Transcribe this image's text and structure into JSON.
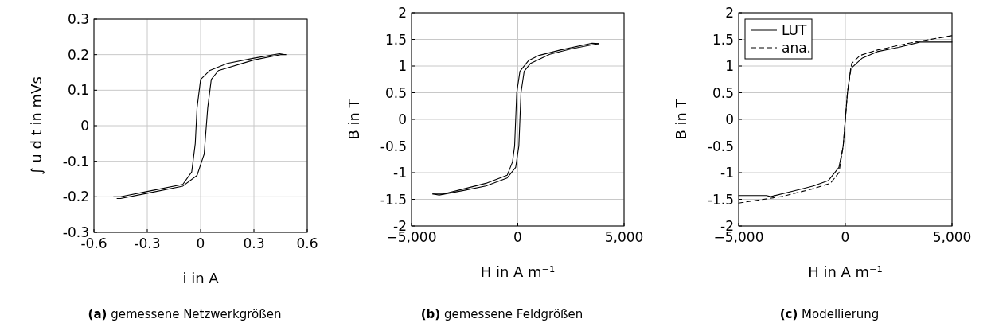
{
  "chart_data": [
    {
      "type": "line",
      "title": "(a) gemessene Netzwerkgrößen",
      "xlabel": "i in A",
      "ylabel": "∫ u d t in mVs",
      "xlim": [
        -0.6,
        0.6
      ],
      "xticks": [
        -0.6,
        -0.3,
        0,
        0.3,
        0.6
      ],
      "ylim": [
        -0.3,
        0.3
      ],
      "yticks": [
        -0.3,
        -0.2,
        -0.1,
        0,
        0.1,
        0.2,
        0.3
      ],
      "grid": true,
      "line_style": "solid",
      "series": [
        {
          "color": "#000000",
          "x": [
            -0.49,
            -0.45,
            -0.3,
            -0.1,
            -0.05,
            -0.03,
            -0.02,
            0.0,
            0.05,
            0.15,
            0.3,
            0.47
          ],
          "values": [
            -0.2,
            -0.2,
            -0.185,
            -0.165,
            -0.13,
            -0.05,
            0.05,
            0.13,
            0.155,
            0.175,
            0.19,
            0.205
          ]
        },
        {
          "color": "#000000",
          "x": [
            -0.47,
            -0.45,
            -0.3,
            -0.1,
            -0.02,
            0.02,
            0.04,
            0.06,
            0.1,
            0.3,
            0.45,
            0.48
          ],
          "values": [
            -0.205,
            -0.205,
            -0.19,
            -0.17,
            -0.14,
            -0.08,
            0.05,
            0.13,
            0.155,
            0.185,
            0.2,
            0.2
          ]
        }
      ]
    },
    {
      "type": "line",
      "title": "(b) gemessene Feldgrößen",
      "xlabel": "H in A m⁻¹",
      "ylabel": "B in T",
      "xlim": [
        -5000,
        5000
      ],
      "xticks": [
        {
          "value": -5000,
          "label": "−5,000"
        },
        {
          "value": 0,
          "label": "0"
        },
        {
          "value": 5000,
          "label": "5,000"
        }
      ],
      "ylim": [
        -2,
        2
      ],
      "yticks": [
        -2,
        -1.5,
        -1,
        -0.5,
        0,
        0.5,
        1,
        1.5,
        2
      ],
      "grid": true,
      "line_style": "solid",
      "series": [
        {
          "color": "#000000",
          "x": [
            -4000,
            -3500,
            -2500,
            -1500,
            -500,
            -250,
            -150,
            -50,
            100,
            500,
            1000,
            2000,
            3500,
            3800
          ],
          "values": [
            -1.4,
            -1.4,
            -1.3,
            -1.2,
            -1.05,
            -0.8,
            -0.5,
            0.5,
            0.9,
            1.1,
            1.2,
            1.3,
            1.43,
            1.42
          ]
        },
        {
          "color": "#000000",
          "x": [
            -4000,
            -3700,
            -2500,
            -1500,
            -500,
            -100,
            50,
            150,
            300,
            600,
            1500,
            2500,
            3500,
            3800
          ],
          "values": [
            -1.4,
            -1.42,
            -1.33,
            -1.25,
            -1.1,
            -0.9,
            -0.5,
            0.5,
            0.9,
            1.05,
            1.22,
            1.32,
            1.4,
            1.42
          ]
        }
      ]
    },
    {
      "type": "line",
      "title": "(c) Modellierung",
      "xlabel": "H in A m⁻¹",
      "ylabel": "B in T",
      "xlim": [
        -5000,
        5000
      ],
      "xticks": [
        {
          "value": -5000,
          "label": "−5,000"
        },
        {
          "value": 0,
          "label": "0"
        },
        {
          "value": 5000,
          "label": "5,000"
        }
      ],
      "ylim": [
        -2,
        2
      ],
      "yticks": [
        -2,
        -1.5,
        -1,
        -0.5,
        0,
        0.5,
        1,
        1.5,
        2
      ],
      "grid": true,
      "legend": "top left",
      "series": [
        {
          "name": "LUT",
          "color": "#000000",
          "line_style": "solid",
          "x": [
            -5000,
            -3700,
            -3500,
            -2500,
            -1500,
            -800,
            -300,
            -100,
            0,
            100,
            250,
            800,
            1500,
            2500,
            3500,
            5000
          ],
          "values": [
            -1.43,
            -1.43,
            -1.45,
            -1.35,
            -1.25,
            -1.15,
            -0.9,
            -0.5,
            0,
            0.5,
            0.95,
            1.15,
            1.27,
            1.35,
            1.45,
            1.45
          ]
        },
        {
          "name": "ana.",
          "color": "#000000",
          "line_style": "dashed",
          "x": [
            -5000,
            -3000,
            -1500,
            -700,
            -300,
            -100,
            0,
            100,
            300,
            700,
            1500,
            3000,
            5000
          ],
          "values": [
            -1.57,
            -1.45,
            -1.3,
            -1.2,
            -1.0,
            -0.5,
            0,
            0.5,
            1.05,
            1.2,
            1.3,
            1.43,
            1.57
          ]
        }
      ]
    }
  ]
}
